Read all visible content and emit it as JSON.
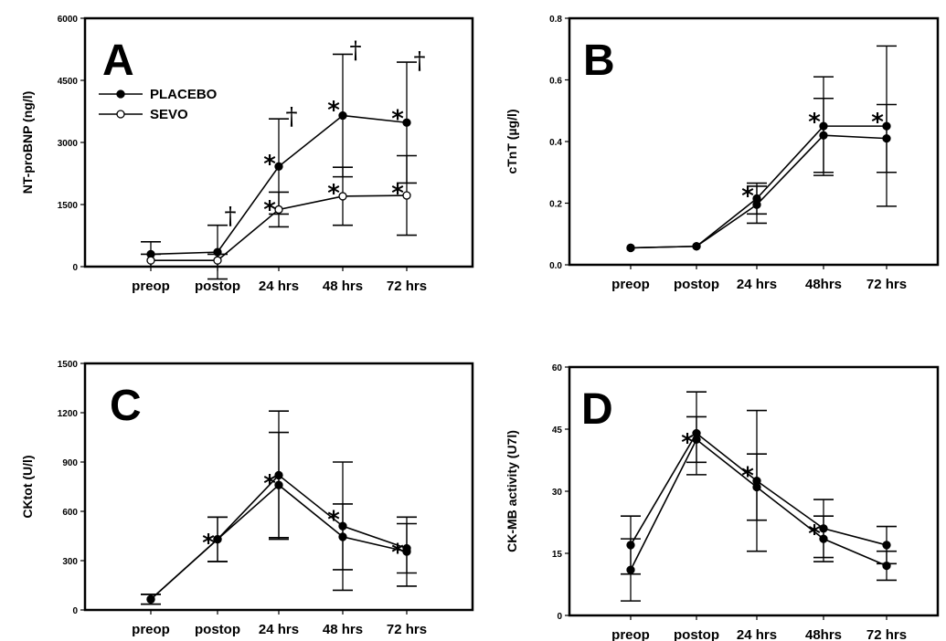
{
  "chart_data": [
    {
      "id": "A",
      "type": "line",
      "panel_label": "A",
      "ylabel": "NT-proBNP (ng/l)",
      "ylim": [
        0,
        6000
      ],
      "yticks": [
        0,
        1500,
        3000,
        4500,
        6000
      ],
      "categories": [
        "preop",
        "postop",
        "24 hrs",
        "48 hrs",
        "72 hrs"
      ],
      "legend": {
        "placement": "top-left",
        "entries": [
          "PLACEBO",
          "SEVO"
        ]
      },
      "series": [
        {
          "name": "PLACEBO",
          "marker": "filled",
          "values": [
            300,
            350,
            2420,
            3650,
            3480
          ],
          "err": [
            300,
            650,
            1150,
            1480,
            1460
          ]
        },
        {
          "name": "SEVO",
          "marker": "open",
          "values": [
            150,
            150,
            1380,
            1700,
            1720
          ],
          "err": [
            150,
            150,
            420,
            700,
            960
          ]
        }
      ],
      "annotations": [
        {
          "text": "*",
          "x": 2,
          "y": 2600
        },
        {
          "text": "*",
          "x": 2,
          "y": 1500
        },
        {
          "text": "*",
          "x": 3,
          "y": 3900
        },
        {
          "text": "*",
          "x": 3,
          "y": 1900
        },
        {
          "text": "*",
          "x": 4,
          "y": 3700
        },
        {
          "text": "*",
          "x": 4,
          "y": 1900
        },
        {
          "text": "†",
          "x": 1,
          "y": 1350
        },
        {
          "text": "†",
          "x": 2,
          "y": 3750
        },
        {
          "text": "†",
          "x": 3,
          "y": 5350
        },
        {
          "text": "†",
          "x": 4,
          "y": 5100
        }
      ]
    },
    {
      "id": "B",
      "type": "line",
      "panel_label": "B",
      "ylabel": "cTnT (µg/l)",
      "ylim": [
        0,
        0.8
      ],
      "yticks": [
        0.0,
        0.2,
        0.4,
        0.6,
        0.8
      ],
      "ytick_labels": [
        "0.0",
        "0.2",
        "0.4",
        "0.6",
        "0.8"
      ],
      "categories": [
        "preop",
        "postop",
        "24 hrs",
        "48hrs",
        "72 hrs"
      ],
      "series": [
        {
          "values": [
            0.055,
            0.06,
            0.215,
            0.45,
            0.45
          ],
          "err": [
            0.0,
            0.0,
            0.05,
            0.16,
            0.26
          ]
        },
        {
          "values": [
            0.055,
            0.06,
            0.195,
            0.42,
            0.41
          ],
          "err": [
            0.0,
            0.0,
            0.06,
            0.12,
            0.11
          ]
        }
      ],
      "annotations": [
        {
          "text": "*",
          "x": 2,
          "y": 0.24
        },
        {
          "text": "*",
          "x": 3,
          "y": 0.48
        },
        {
          "text": "*",
          "x": 4,
          "y": 0.48
        }
      ]
    },
    {
      "id": "C",
      "type": "line",
      "panel_label": "C",
      "ylabel": "CKtot (U/l)",
      "ylim": [
        0,
        1500
      ],
      "yticks": [
        0,
        300,
        600,
        900,
        1200,
        1500
      ],
      "categories": [
        "preop",
        "postop",
        "24 hrs",
        "48 hrs",
        "72 hrs"
      ],
      "series": [
        {
          "values": [
            65,
            430,
            820,
            510,
            375
          ],
          "err": [
            30,
            135,
            390,
            390,
            150
          ]
        },
        {
          "values": [
            65,
            430,
            760,
            445,
            355
          ],
          "err": [
            30,
            135,
            320,
            200,
            210
          ]
        }
      ],
      "annotations": [
        {
          "text": "*",
          "x": 1,
          "y": 440
        },
        {
          "text": "*",
          "x": 2,
          "y": 800
        },
        {
          "text": "*",
          "x": 3,
          "y": 580
        },
        {
          "text": "*",
          "x": 4,
          "y": 380
        }
      ]
    },
    {
      "id": "D",
      "type": "line",
      "panel_label": "D",
      "ylabel": "CK-MB activity (U7l)",
      "ylim": [
        0,
        60
      ],
      "yticks": [
        0,
        15,
        30,
        45,
        60
      ],
      "categories": [
        "preop",
        "postop",
        "24 hrs",
        "48hrs",
        "72 hrs"
      ],
      "series": [
        {
          "values": [
            17,
            44,
            32.5,
            21,
            17
          ],
          "err": [
            7,
            10,
            17,
            7,
            4.5
          ]
        },
        {
          "values": [
            11,
            42.5,
            31,
            18.5,
            12
          ],
          "err": [
            7.5,
            5.5,
            8,
            5.5,
            3.5
          ]
        }
      ],
      "annotations": [
        {
          "text": "*",
          "x": 1,
          "y": 43
        },
        {
          "text": "*",
          "x": 2,
          "y": 35
        },
        {
          "text": "*",
          "x": 3,
          "y": 21
        }
      ]
    }
  ]
}
